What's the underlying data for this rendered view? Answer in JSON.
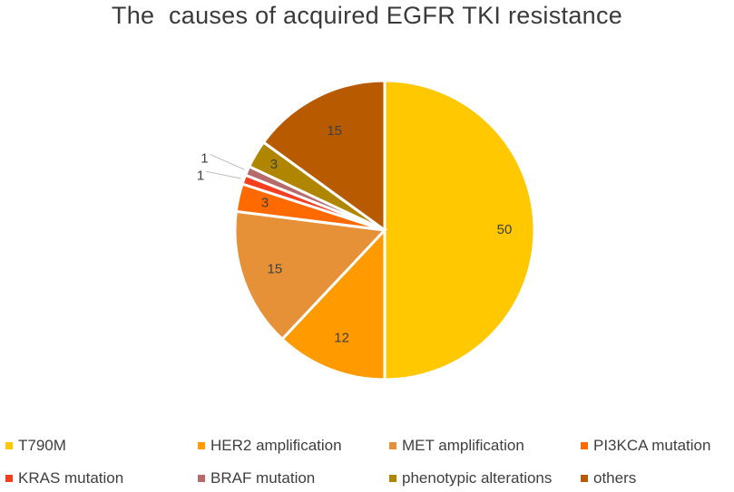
{
  "chart_data": {
    "type": "pie",
    "title": "The  causes of acquired EGFR TKI resistance",
    "slices": [
      {
        "name": "T790M",
        "value": 50,
        "color": "#FFC800"
      },
      {
        "name": "HER2 amplification",
        "value": 12,
        "color": "#FF9A00"
      },
      {
        "name": "MET amplification",
        "value": 15,
        "color": "#E69138"
      },
      {
        "name": "PI3KCA mutation",
        "value": 3,
        "color": "#FF6A00"
      },
      {
        "name": "KRAS mutation",
        "value": 1,
        "color": "#F53D1F"
      },
      {
        "name": "BRAF mutation",
        "value": 1,
        "color": "#B66A6A"
      },
      {
        "name": "phenotypic alterations",
        "value": 3,
        "color": "#B08600"
      },
      {
        "name": "others",
        "value": 15,
        "color": "#B85A00"
      }
    ],
    "legend_position": "bottom"
  }
}
